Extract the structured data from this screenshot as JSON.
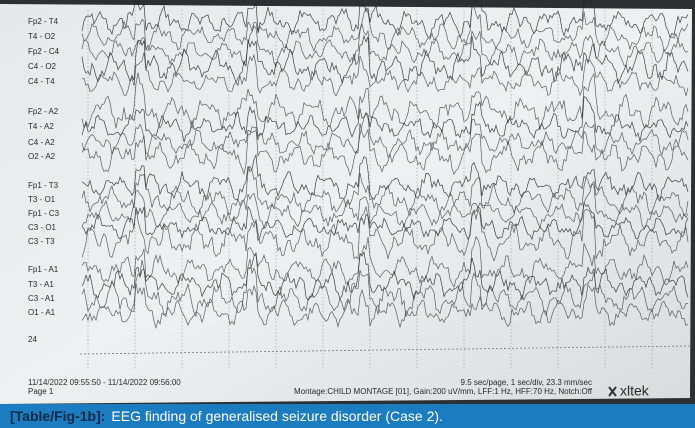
{
  "channels": [
    "Fp2 - T4",
    "T4 - O2",
    "Fp2 - C4",
    "C4 - O2",
    "C4 - T4",
    "Fp2 - A2",
    "T4 - A2",
    "C4 - A2",
    "O2 - A2",
    "Fp1 - T3",
    "T3 - O1",
    "Fp1 - C3",
    "C3 - O1",
    "C3 - T3",
    "Fp1 - A1",
    "T3 - A1",
    "C3 - A1",
    "O1 - A1"
  ],
  "scale_label": "24",
  "footer": {
    "time_range": "11/14/2022 09:55:50 - 11/14/2022 09:56:00",
    "page": "Page 1",
    "speed": "9.5 sec/page, 1 sec/div, 23.3 mm/sec",
    "montage": "Montage:CHILD MONTAGE [01], Gain:200 uV/mm, LFF:1 Hz, HFF:70 Hz, Notch:Off",
    "logo": "xltek"
  },
  "caption": {
    "label": "[Table/Fig-1b]:",
    "text": "EEG finding of generalised seizure disorder (Case 2)."
  }
}
